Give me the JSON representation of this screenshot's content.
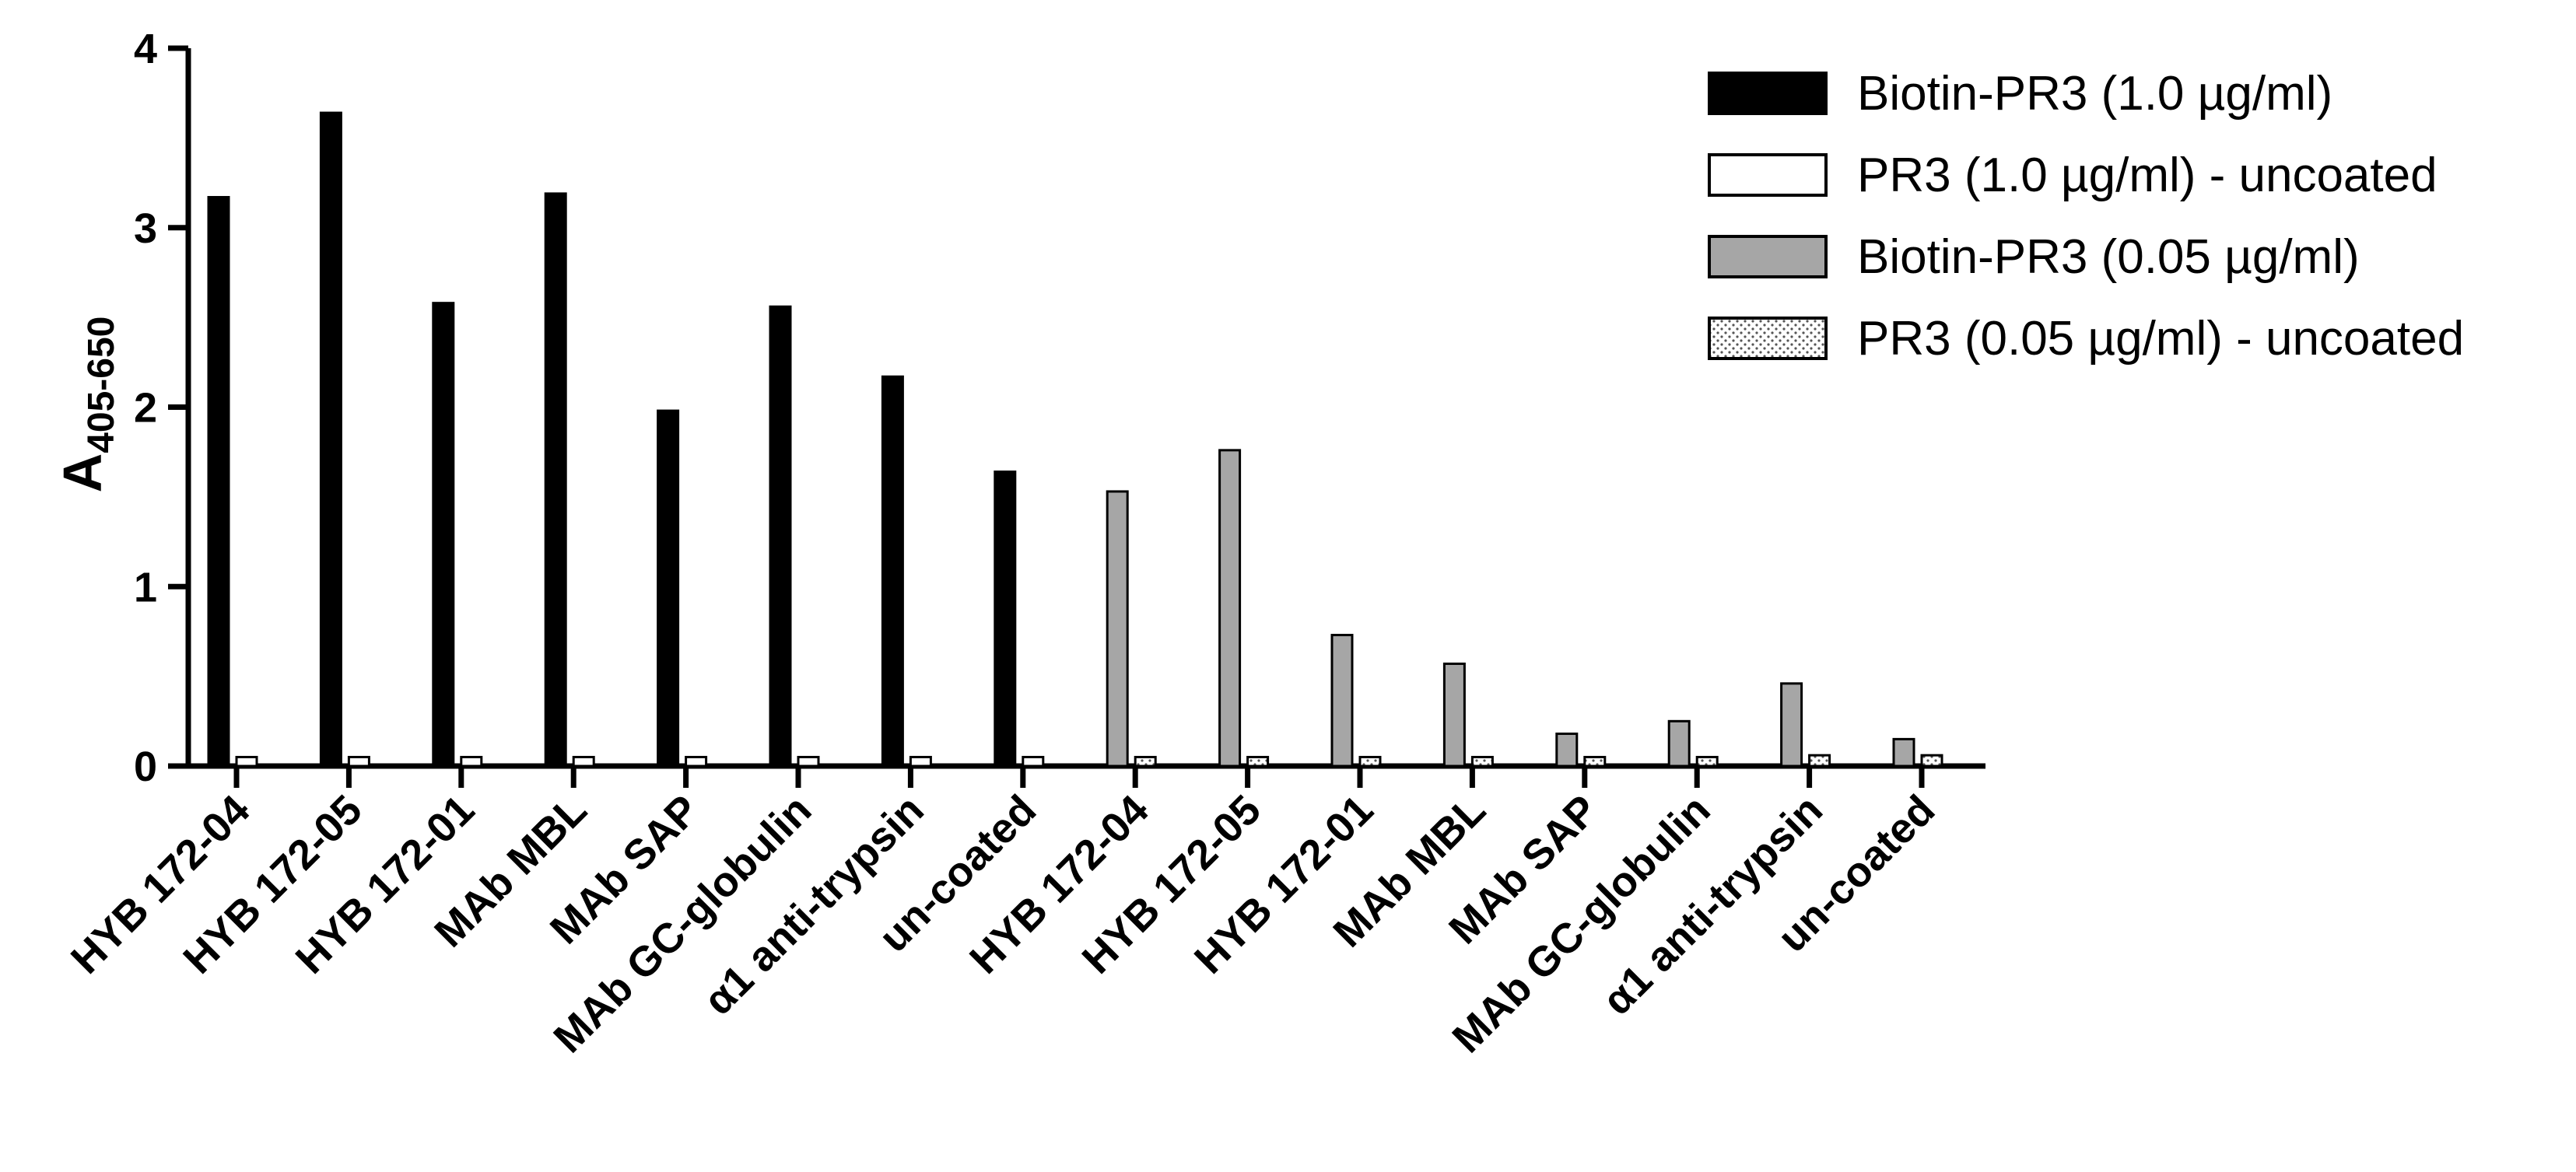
{
  "chart_data": {
    "type": "bar",
    "title": "",
    "xlabel": "",
    "ylabel": "A",
    "ylabel_subscript": "405-650",
    "ylim": [
      0,
      4
    ],
    "yticks": [
      "0",
      "1",
      "2",
      "3",
      "4"
    ],
    "categories": [
      "HYB 172-04",
      "HYB 172-05",
      "HYB 172-01",
      "MAb MBL",
      "MAb SAP",
      "MAb GC-globulin",
      "α1 anti-trypsin",
      "un-coated",
      "HYB 172-04",
      "HYB 172-05",
      "HYB 172-01",
      "MAb MBL",
      "MAb SAP",
      "MAb GC-globulin",
      "α1 anti-trypsin",
      "un-coated"
    ],
    "series": [
      {
        "name": "Biotin-PR3 (1.0 µg/ml)",
        "color": "#000000",
        "pattern": "solid",
        "values": [
          3.17,
          3.64,
          2.58,
          3.19,
          1.98,
          2.56,
          2.17,
          1.64,
          null,
          null,
          null,
          null,
          null,
          null,
          null,
          null
        ]
      },
      {
        "name": "PR3 (1.0 µg/ml) - uncoated",
        "color": "#ffffff",
        "pattern": "solid",
        "values": [
          0.05,
          0.05,
          0.05,
          0.05,
          0.05,
          0.05,
          0.05,
          0.05,
          null,
          null,
          null,
          null,
          null,
          null,
          null,
          null
        ]
      },
      {
        "name": "Biotin-PR3 (0.05 µg/ml)",
        "color": "#a6a6a6",
        "pattern": "solid",
        "values": [
          null,
          null,
          null,
          null,
          null,
          null,
          null,
          null,
          1.53,
          1.76,
          0.73,
          0.57,
          0.18,
          0.25,
          0.46,
          0.15
        ]
      },
      {
        "name": "PR3 (0.05 µg/ml) - uncoated",
        "color": "#ffffff",
        "pattern": "dotted",
        "values": [
          null,
          null,
          null,
          null,
          null,
          null,
          null,
          null,
          0.05,
          0.05,
          0.05,
          0.05,
          0.05,
          0.05,
          0.06,
          0.06
        ]
      }
    ],
    "legend_position": "top-right",
    "grid": false
  }
}
